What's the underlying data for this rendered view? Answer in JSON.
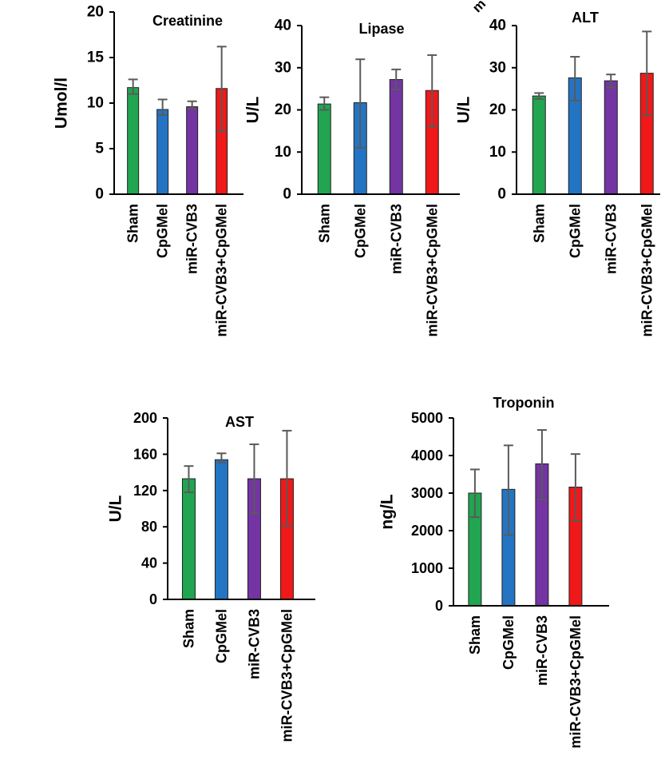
{
  "colors": {
    "Sham": "#21a550",
    "CpGMel": "#2375c4",
    "miR-CVB3": "#7434a3",
    "miR-CVB3+CpGMel": "#f01818",
    "error_bar": "#5a5a5a",
    "axis": "#000000"
  },
  "crop_fragment": "m",
  "chart_data": [
    {
      "type": "bar",
      "title": "Creatinine",
      "ylabel": "Umol/l",
      "xlabel": "",
      "categories": [
        "Sham",
        "CpGMel",
        "miR-CVB3",
        "miR-CVB3+CpGMel"
      ],
      "values": [
        11.7,
        9.3,
        9.6,
        11.6
      ],
      "error_upper": [
        12.6,
        10.4,
        10.2,
        16.2
      ],
      "error_lower": [
        11.0,
        8.7,
        9.4,
        6.9
      ],
      "ylim": [
        0,
        20
      ],
      "yticks": [
        "0",
        "5",
        "10",
        "15",
        "20"
      ],
      "grid": false,
      "legend": "none"
    },
    {
      "type": "bar",
      "title": "Lipase",
      "ylabel": "U/L",
      "xlabel": "",
      "categories": [
        "Sham",
        "CpGMel",
        "miR-CVB3",
        "miR-CVB3+CpGMel"
      ],
      "values": [
        21.4,
        21.7,
        27.2,
        24.6
      ],
      "error_upper": [
        23.0,
        32.0,
        29.6,
        33.0
      ],
      "error_lower": [
        20.0,
        11.0,
        24.8,
        16.0
      ],
      "ylim": [
        0,
        40
      ],
      "yticks": [
        "0",
        "10",
        "20",
        "30",
        "40"
      ],
      "grid": false,
      "legend": "none"
    },
    {
      "type": "bar",
      "title": "ALT",
      "ylabel": "U/L",
      "xlabel": "",
      "categories": [
        "Sham",
        "CpGMel",
        "miR-CVB3",
        "miR-CVB3+CpGMel"
      ],
      "values": [
        23.3,
        27.6,
        26.9,
        28.7
      ],
      "error_upper": [
        24.0,
        32.6,
        28.4,
        38.6
      ],
      "error_lower": [
        22.6,
        22.2,
        25.3,
        18.7
      ],
      "ylim": [
        0,
        40
      ],
      "yticks": [
        "0",
        "10",
        "20",
        "30",
        "40"
      ],
      "grid": false,
      "legend": "none"
    },
    {
      "type": "bar",
      "title": "AST",
      "ylabel": "U/L",
      "xlabel": "",
      "categories": [
        "Sham",
        "CpGMel",
        "miR-CVB3",
        "miR-CVB3+CpGMel"
      ],
      "values": [
        133,
        154,
        133,
        133
      ],
      "error_upper": [
        147,
        161,
        171,
        186
      ],
      "error_lower": [
        118,
        151,
        95,
        81
      ],
      "ylim": [
        0,
        200
      ],
      "yticks": [
        "0",
        "40",
        "80",
        "120",
        "160",
        "200"
      ],
      "grid": false,
      "legend": "none"
    },
    {
      "type": "bar",
      "title": "Troponin",
      "ylabel": "ng/L",
      "xlabel": "",
      "categories": [
        "Sham",
        "CpGMel",
        "miR-CVB3",
        "miR-CVB3+CpGMel"
      ],
      "values": [
        3000,
        3100,
        3780,
        3160
      ],
      "error_upper": [
        3630,
        4270,
        4680,
        4040
      ],
      "error_lower": [
        2360,
        1880,
        2830,
        2260
      ],
      "ylim": [
        0,
        5000
      ],
      "yticks": [
        "0",
        "1000",
        "2000",
        "3000",
        "4000",
        "5000"
      ],
      "grid": false,
      "legend": "none"
    }
  ]
}
